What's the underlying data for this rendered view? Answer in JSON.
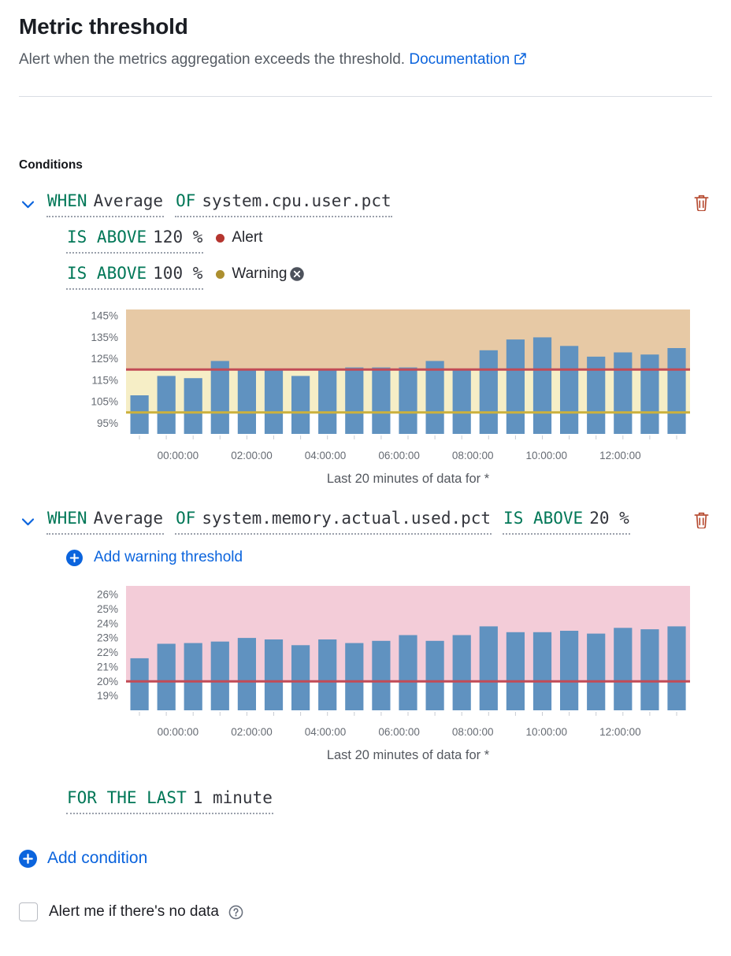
{
  "header": {
    "title": "Metric threshold",
    "subtitle": "Alert when the metrics aggregation exceeds the threshold.",
    "documentation_link": "Documentation"
  },
  "conditions_section": {
    "heading": "Conditions",
    "conditions": [
      {
        "when_label": "WHEN",
        "aggregation": "Average",
        "of_label": "OF",
        "metric": "system.cpu.user.pct",
        "thresholds": [
          {
            "operator": "IS ABOVE",
            "value": "120 %",
            "severity": "Alert"
          },
          {
            "operator": "IS ABOVE",
            "value": "100 %",
            "severity": "Warning"
          }
        ]
      },
      {
        "when_label": "WHEN",
        "aggregation": "Average",
        "of_label": "OF",
        "metric": "system.memory.actual.used.pct",
        "operator": "IS ABOVE",
        "value": "20 %",
        "add_warning_label": "Add warning threshold",
        "time_window": {
          "label": "FOR THE LAST",
          "value": "1 minute"
        }
      }
    ],
    "add_condition_label": "Add condition"
  },
  "no_data_alert": {
    "label": "Alert me if there's no data"
  },
  "colors": {
    "link_blue": "#0b64dd",
    "expression_green": "#007757",
    "alert_dot_red": "#b5352f",
    "warning_dot_yellow": "#ac8f2f",
    "trash_red": "#b5492f",
    "bar_blue": "#6092c0"
  },
  "chart_data": [
    {
      "type": "bar",
      "title": "",
      "xlabel": "",
      "ylabel": "%",
      "ylim": [
        90,
        148
      ],
      "yticks": [
        95,
        105,
        115,
        125,
        135,
        145
      ],
      "ytick_suffix": "%",
      "x_labels": [
        "00:00:00",
        "02:00:00",
        "04:00:00",
        "06:00:00",
        "08:00:00",
        "10:00:00",
        "12:00:00"
      ],
      "values": [
        108,
        117,
        116,
        124,
        120,
        120,
        117,
        120,
        121,
        121,
        121,
        124,
        120,
        129,
        134,
        135,
        131,
        126,
        128,
        127,
        130
      ],
      "bar_color": "#6092c0",
      "threshold_lines": [
        {
          "name": "alert-threshold",
          "value": 120,
          "color": "#c24b56"
        },
        {
          "name": "warning-threshold",
          "value": 100,
          "color": "#ccb13c"
        }
      ],
      "bands": [
        {
          "name": "alert-zone",
          "from": 120,
          "to": 148,
          "color": "#e7c9a5"
        },
        {
          "name": "warning-zone",
          "from": 100,
          "to": 120,
          "color": "#f6eec6"
        }
      ],
      "caption": "Last 20 minutes of data for *"
    },
    {
      "type": "bar",
      "title": "",
      "xlabel": "",
      "ylabel": "%",
      "ylim": [
        18,
        26.6
      ],
      "yticks": [
        19,
        20,
        21,
        22,
        23,
        24,
        25,
        26
      ],
      "ytick_suffix": "%",
      "x_labels": [
        "00:00:00",
        "02:00:00",
        "04:00:00",
        "06:00:00",
        "08:00:00",
        "10:00:00",
        "12:00:00"
      ],
      "values": [
        21.6,
        22.6,
        22.65,
        22.75,
        23.0,
        22.9,
        22.5,
        22.9,
        22.65,
        22.8,
        23.2,
        22.8,
        23.2,
        23.8,
        23.4,
        23.4,
        23.5,
        23.3,
        23.7,
        23.6,
        23.8
      ],
      "bar_color": "#6092c0",
      "threshold_lines": [
        {
          "name": "alert-threshold",
          "value": 20,
          "color": "#c24b56"
        }
      ],
      "bands": [
        {
          "name": "alert-zone",
          "from": 20,
          "to": 26.6,
          "color": "#f3ccd8"
        }
      ],
      "caption": "Last 20 minutes of data for *"
    }
  ]
}
